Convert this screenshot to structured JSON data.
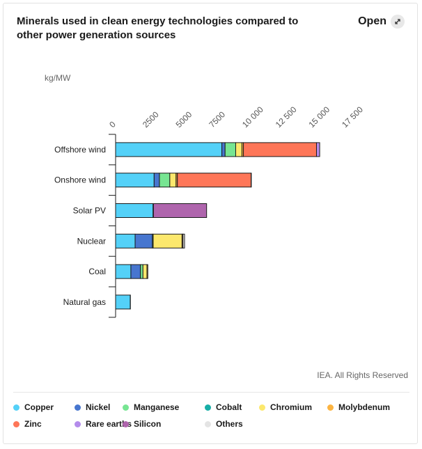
{
  "header": {
    "title": "Minerals used in clean energy technologies compared to other power generation sources",
    "open_label": "Open"
  },
  "source": "IEA. All Rights Reserved",
  "chart_data": {
    "type": "bar",
    "orientation": "horizontal",
    "stacked": true,
    "unit_label": "kg/MW",
    "xlim": [
      0,
      17500
    ],
    "x_ticks": [
      "0",
      "2500",
      "5000",
      "7500",
      "10 000",
      "12 500",
      "15 000",
      "17 500"
    ],
    "x_tick_values": [
      0,
      2500,
      5000,
      7500,
      10000,
      12500,
      15000,
      17500
    ],
    "categories": [
      "Offshore wind",
      "Onshore wind",
      "Solar PV",
      "Nuclear",
      "Coal",
      "Natural gas"
    ],
    "series": [
      {
        "name": "Copper",
        "color": "#54d1f8",
        "values": [
          8000,
          2900,
          2820,
          1470,
          1150,
          1100
        ]
      },
      {
        "name": "Nickel",
        "color": "#4776cf",
        "values": [
          240,
          400,
          0,
          1300,
          720,
          16
        ]
      },
      {
        "name": "Manganese",
        "color": "#77e592",
        "values": [
          800,
          780,
          0,
          60,
          190,
          0
        ]
      },
      {
        "name": "Cobalt",
        "color": "#17aea7",
        "values": [
          0,
          0,
          0,
          0,
          0,
          0
        ]
      },
      {
        "name": "Chromium",
        "color": "#fce86d",
        "values": [
          470,
          470,
          0,
          2170,
          300,
          0
        ]
      },
      {
        "name": "Molybdenum",
        "color": "#fcb441",
        "values": [
          110,
          100,
          0,
          70,
          65,
          0
        ]
      },
      {
        "name": "Zinc",
        "color": "#fe7658",
        "values": [
          5500,
          5550,
          30,
          0,
          0,
          0
        ]
      },
      {
        "name": "Rare earths",
        "color": "#b48ceb",
        "values": [
          240,
          14,
          0,
          0,
          0,
          0
        ]
      },
      {
        "name": "Silicon",
        "color": "#af65ad",
        "values": [
          0,
          0,
          4000,
          0,
          0,
          0
        ]
      },
      {
        "name": "Others",
        "color": "#e4e4e4",
        "values": [
          0,
          0,
          0,
          120,
          0,
          0
        ]
      }
    ],
    "legend_position": "bottom",
    "grid": false
  }
}
